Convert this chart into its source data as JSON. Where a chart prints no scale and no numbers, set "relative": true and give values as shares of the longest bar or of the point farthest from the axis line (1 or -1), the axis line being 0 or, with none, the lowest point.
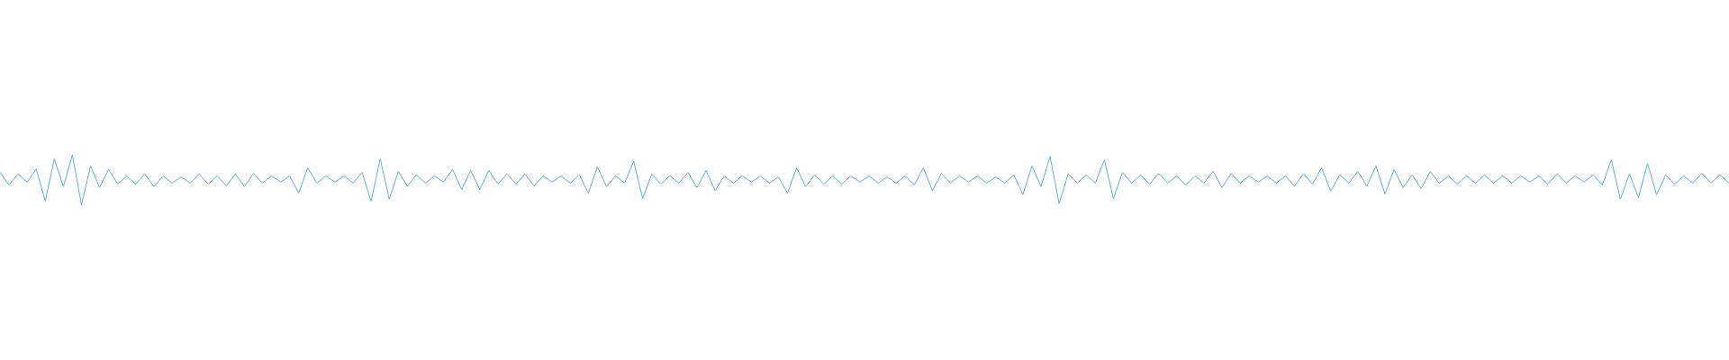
{
  "chart_data": {
    "type": "line",
    "relative": true,
    "tick_labels": false,
    "categories": [
      null,
      null,
      null,
      null,
      null,
      null,
      null,
      null,
      null,
      null,
      null,
      null,
      null,
      null,
      null,
      null,
      null,
      null,
      null,
      null,
      null,
      null,
      null,
      null,
      null,
      null,
      null,
      null,
      null,
      null,
      null,
      null,
      null,
      null,
      null,
      null,
      null,
      null,
      null,
      null,
      null,
      null,
      null,
      null,
      null,
      null,
      null,
      null,
      null,
      null,
      null,
      null,
      null,
      null,
      null,
      null,
      null,
      null,
      null,
      null,
      null,
      null,
      null,
      null,
      null,
      null,
      null,
      null,
      null,
      null,
      null,
      null,
      null,
      null,
      null,
      null,
      null,
      null,
      null,
      null,
      null,
      null,
      null,
      null,
      null,
      null,
      null,
      null,
      null,
      null,
      null,
      null,
      null,
      null,
      null,
      null,
      null,
      null,
      null,
      null,
      null,
      null,
      null,
      null,
      null,
      null,
      null,
      null,
      null,
      null,
      null,
      null,
      null,
      null,
      null,
      null,
      null,
      null,
      null,
      null,
      null,
      null,
      null,
      null,
      null,
      null,
      null,
      null,
      null,
      null,
      null,
      null,
      null,
      null,
      null,
      null,
      null,
      null,
      null,
      null,
      null,
      null,
      null,
      null,
      null,
      null,
      null,
      null,
      null,
      null,
      null,
      null,
      null,
      null,
      null,
      null,
      null,
      null,
      null,
      null,
      null,
      null,
      null,
      null,
      null,
      null,
      null,
      null,
      null,
      null,
      null,
      null,
      null,
      null,
      null,
      null,
      null,
      null,
      null,
      null,
      null,
      null,
      null,
      null,
      null,
      null,
      null,
      null,
      null,
      null,
      null,
      null
    ],
    "series": [
      {
        "color": "#5dade2",
        "values": [
          0.65,
          0.4,
          0.62,
          0.46,
          0.72,
          0.08,
          0.92,
          0.37,
          1.0,
          0.0,
          0.78,
          0.35,
          0.71,
          0.42,
          0.58,
          0.42,
          0.62,
          0.37,
          0.58,
          0.44,
          0.56,
          0.44,
          0.62,
          0.42,
          0.58,
          0.38,
          0.62,
          0.37,
          0.63,
          0.44,
          0.58,
          0.46,
          0.58,
          0.24,
          0.74,
          0.44,
          0.58,
          0.46,
          0.58,
          0.44,
          0.65,
          0.08,
          0.92,
          0.12,
          0.67,
          0.38,
          0.6,
          0.44,
          0.58,
          0.46,
          0.71,
          0.31,
          0.69,
          0.31,
          0.69,
          0.42,
          0.62,
          0.42,
          0.62,
          0.38,
          0.58,
          0.46,
          0.58,
          0.44,
          0.6,
          0.24,
          0.76,
          0.37,
          0.58,
          0.44,
          0.87,
          0.13,
          0.62,
          0.42,
          0.58,
          0.44,
          0.65,
          0.35,
          0.69,
          0.29,
          0.58,
          0.44,
          0.58,
          0.46,
          0.58,
          0.44,
          0.56,
          0.24,
          0.74,
          0.37,
          0.6,
          0.42,
          0.58,
          0.42,
          0.58,
          0.46,
          0.58,
          0.44,
          0.56,
          0.44,
          0.58,
          0.4,
          0.74,
          0.29,
          0.63,
          0.44,
          0.58,
          0.46,
          0.58,
          0.44,
          0.56,
          0.44,
          0.6,
          0.21,
          0.78,
          0.37,
          0.97,
          0.03,
          0.62,
          0.44,
          0.6,
          0.44,
          0.9,
          0.13,
          0.65,
          0.44,
          0.6,
          0.42,
          0.63,
          0.44,
          0.58,
          0.4,
          0.58,
          0.44,
          0.67,
          0.35,
          0.63,
          0.44,
          0.58,
          0.46,
          0.58,
          0.44,
          0.58,
          0.38,
          0.62,
          0.42,
          0.74,
          0.28,
          0.6,
          0.44,
          0.67,
          0.38,
          0.78,
          0.22,
          0.71,
          0.35,
          0.6,
          0.33,
          0.67,
          0.44,
          0.58,
          0.42,
          0.58,
          0.44,
          0.6,
          0.44,
          0.58,
          0.44,
          0.58,
          0.46,
          0.58,
          0.42,
          0.62,
          0.44,
          0.58,
          0.46,
          0.6,
          0.4,
          0.9,
          0.12,
          0.62,
          0.15,
          0.83,
          0.21,
          0.6,
          0.42,
          0.58,
          0.44,
          0.63,
          0.44,
          0.6,
          0.44
        ]
      }
    ]
  }
}
